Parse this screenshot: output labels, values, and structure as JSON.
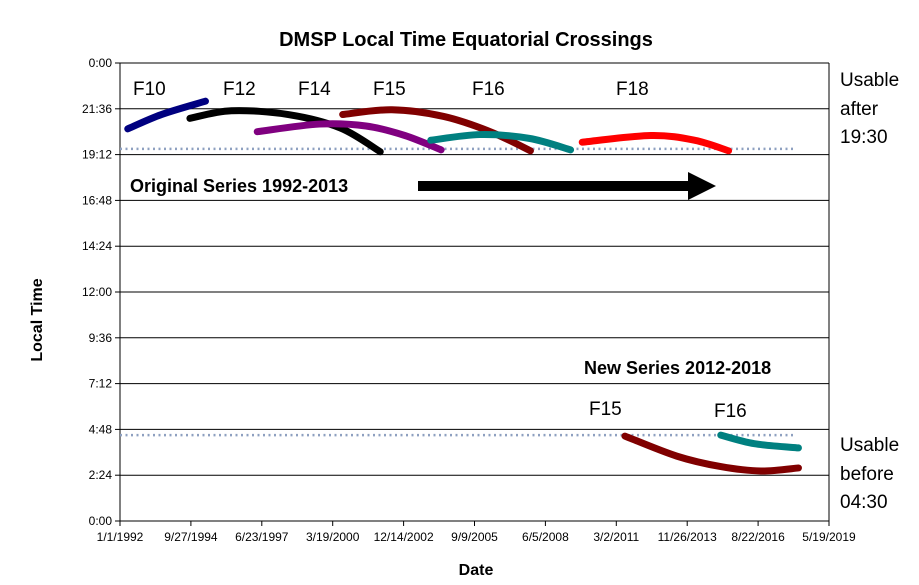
{
  "chart_data": {
    "type": "line",
    "title": "DMSP Local Time Equatorial Crossings",
    "xlabel": "Date",
    "ylabel": "Local Time",
    "x_unit": "decimal year",
    "xlim": [
      1992.0,
      2019.38
    ],
    "x_tick_labels": [
      "1/1/1992",
      "9/27/1994",
      "6/23/1997",
      "3/19/2000",
      "12/14/2002",
      "9/9/2005",
      "6/5/2008",
      "3/2/2011",
      "11/26/2013",
      "8/22/2016",
      "5/19/2019"
    ],
    "y_unit": "hours",
    "ylim": [
      0,
      24
    ],
    "y_tick_labels": [
      "0:00",
      "2:24",
      "4:48",
      "7:12",
      "9:36",
      "12:00",
      "14:24",
      "16:48",
      "19:12",
      "21:36",
      "0:00"
    ],
    "grid": "horizontal",
    "series": [
      {
        "name": "F10",
        "color": "#000080",
        "points": [
          [
            1992.3,
            20.55
          ],
          [
            1993.6,
            21.3
          ],
          [
            1995.3,
            22.0
          ]
        ]
      },
      {
        "name": "F12",
        "color": "#000000",
        "points": [
          [
            1994.7,
            21.1
          ],
          [
            1996.3,
            21.5
          ],
          [
            1998.5,
            21.3
          ],
          [
            2000.5,
            20.6
          ],
          [
            2002.05,
            19.35
          ]
        ]
      },
      {
        "name": "F14",
        "color": "#800080",
        "points": [
          [
            1997.3,
            20.4
          ],
          [
            1999.7,
            20.8
          ],
          [
            2001.5,
            20.7
          ],
          [
            2003.0,
            20.2
          ],
          [
            2004.4,
            19.45
          ]
        ]
      },
      {
        "name": "F15",
        "color": "#800000",
        "points": [
          [
            2000.6,
            21.3
          ],
          [
            2002.5,
            21.55
          ],
          [
            2004.5,
            21.2
          ],
          [
            2006.3,
            20.4
          ],
          [
            2007.85,
            19.4
          ]
        ]
      },
      {
        "name": "F16",
        "color": "#008080",
        "points": [
          [
            2004.0,
            19.95
          ],
          [
            2005.9,
            20.25
          ],
          [
            2007.8,
            20.05
          ],
          [
            2009.4,
            19.45
          ]
        ]
      },
      {
        "name": "F18",
        "color": "#ff0000",
        "points": [
          [
            2009.85,
            19.85
          ],
          [
            2012.5,
            20.2
          ],
          [
            2014.2,
            19.95
          ],
          [
            2015.5,
            19.4
          ]
        ]
      },
      {
        "name": "F15 (new)",
        "color": "#800000",
        "points": [
          [
            2011.5,
            4.45
          ],
          [
            2013.5,
            3.4
          ],
          [
            2015.2,
            2.85
          ],
          [
            2016.75,
            2.62
          ],
          [
            2018.2,
            2.78
          ]
        ]
      },
      {
        "name": "F16 (new)",
        "color": "#008080",
        "points": [
          [
            2015.2,
            4.5
          ],
          [
            2016.5,
            4.05
          ],
          [
            2018.2,
            3.83
          ]
        ]
      }
    ],
    "reference_lines": [
      {
        "y": 19.5,
        "style": "dotted",
        "color": "#8ea0c0"
      },
      {
        "y": 4.5,
        "style": "dotted",
        "color": "#8ea0c0"
      }
    ],
    "annotations": {
      "top_labels": [
        "F10",
        "F12",
        "F14",
        "F15",
        "F16",
        "F18"
      ],
      "original_series": "Original Series 1992-2013",
      "new_series": "New Series 2012-2018",
      "new_labels": [
        "F15",
        "F16"
      ],
      "usable_after": [
        "Usable",
        "after",
        "19:30"
      ],
      "usable_before": [
        "Usable",
        "before",
        "04:30"
      ]
    }
  }
}
